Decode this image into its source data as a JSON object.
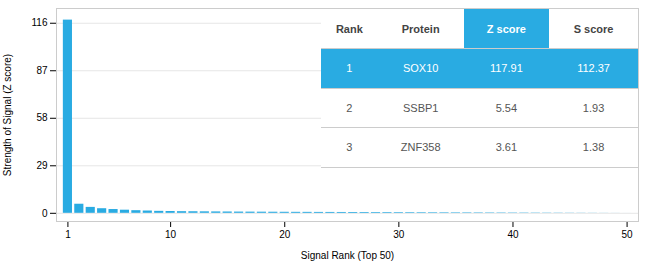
{
  "chart_data": {
    "type": "bar",
    "xlabel": "Signal Rank (Top 50)",
    "ylabel": "Strength of Signal (Z score)",
    "x": [
      1,
      2,
      3,
      4,
      5,
      6,
      7,
      8,
      9,
      10,
      11,
      12,
      13,
      14,
      15,
      16,
      17,
      18,
      19,
      20,
      21,
      22,
      23,
      24,
      25,
      26,
      27,
      28,
      29,
      30,
      31,
      32,
      33,
      34,
      35,
      36,
      37,
      38,
      39,
      40,
      41,
      42,
      43,
      44,
      45,
      46,
      47,
      48,
      49,
      50
    ],
    "values": [
      117.91,
      5.54,
      3.61,
      2.8,
      2.3,
      1.9,
      1.6,
      1.4,
      1.2,
      1.1,
      1.0,
      0.95,
      0.9,
      0.85,
      0.8,
      0.75,
      0.72,
      0.69,
      0.66,
      0.63,
      0.6,
      0.58,
      0.55,
      0.53,
      0.51,
      0.49,
      0.47,
      0.45,
      0.43,
      0.41,
      0.39,
      0.37,
      0.35,
      0.33,
      0.31,
      0.29,
      0.27,
      0.25,
      0.23,
      0.21,
      0.19,
      0.17,
      0.15,
      0.13,
      0.11,
      0.09,
      0.07,
      0.05,
      0.03,
      0.01
    ],
    "color": "#29ABE2",
    "xlim": [
      0,
      51
    ],
    "ylim": [
      -5,
      125
    ],
    "xticks": [
      1,
      10,
      20,
      30,
      40,
      50
    ],
    "yticks": [
      0,
      29,
      58,
      87,
      116
    ],
    "grid": true,
    "table": {
      "headers": [
        "Rank",
        "Protein",
        "Z score",
        "S score"
      ],
      "rows": [
        [
          "1",
          "SOX10",
          "117.91",
          "112.37"
        ],
        [
          "2",
          "SSBP1",
          "5.54",
          "1.93"
        ],
        [
          "3",
          "ZNF358",
          "3.61",
          "1.38"
        ]
      ]
    }
  }
}
